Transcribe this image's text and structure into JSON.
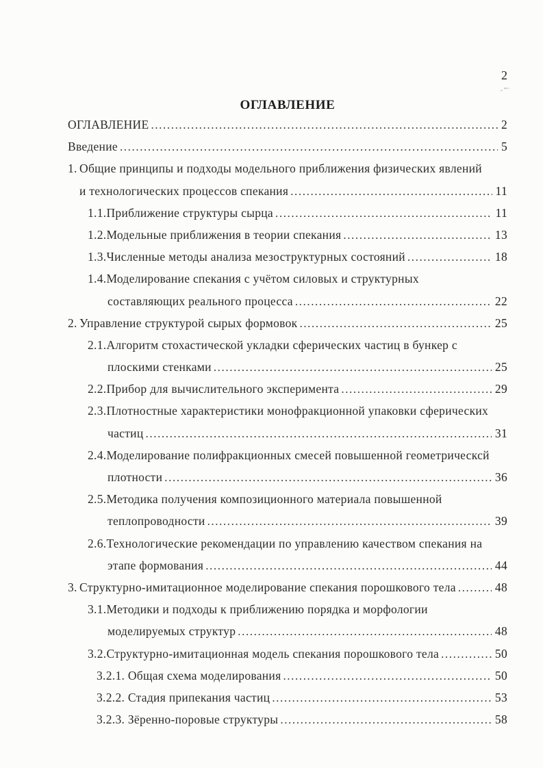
{
  "page": {
    "corner_page_number": "2",
    "title": "ОГЛАВЛЕНИЕ"
  },
  "colors": {
    "paper": "#fcfcfb",
    "text": "#2b2b2b"
  },
  "toc": {
    "entries": [
      {
        "lvl": "i0",
        "text": "ОГЛАВЛЕНИЕ",
        "page": "2"
      },
      {
        "lvl": "i0",
        "text": "Введение",
        "page": "5"
      },
      {
        "lvl": "ch",
        "num": "1.",
        "text": "Общие принципы и подходы модельного приближения физических явлений"
      },
      {
        "lvl": "ic",
        "text": "и технологических процессов спекания",
        "page": "11"
      },
      {
        "lvl": "i1",
        "text": "1.1.Приближение структуры сырца",
        "page": "11"
      },
      {
        "lvl": "i1",
        "text": "1.2.Модельные приближения в теории спекания",
        "page": "13"
      },
      {
        "lvl": "i1",
        "text": "1.3.Численные методы анализа мезоструктурных состояний",
        "page": "18"
      },
      {
        "lvl": "i1",
        "text": "1.4.Моделирование спекания с учётом силовых и структурных"
      },
      {
        "lvl": "i2",
        "text": "составляющих реального процесса",
        "page": "22"
      },
      {
        "lvl": "ch",
        "num": "2.",
        "text": "Управление структурой сырых формовок",
        "page": "25"
      },
      {
        "lvl": "i1",
        "text": "2.1.Алгоритм стохастической укладки сферических частиц в бункер с"
      },
      {
        "lvl": "i2",
        "text": "плоскими стенками",
        "page": "25"
      },
      {
        "lvl": "i1",
        "text": "2.2.Прибор для вычислительного эксперимента",
        "page": "29"
      },
      {
        "lvl": "i1",
        "text": "2.3.Плотностные характеристики монофракционной упаковки сферических"
      },
      {
        "lvl": "i2",
        "text": "частиц",
        "page": "31"
      },
      {
        "lvl": "i1",
        "text": "2.4.Моделирование полифракционных смесей повышенной геометрическсй"
      },
      {
        "lvl": "i2",
        "text": "плотности",
        "page": "36"
      },
      {
        "lvl": "i1",
        "text": "2.5.Методика получения композиционного материала повышенной"
      },
      {
        "lvl": "i2",
        "text": "теплопроводности",
        "page": "39"
      },
      {
        "lvl": "i1",
        "text": "2.6.Технологические рекомендации по управлению качеством спекания на"
      },
      {
        "lvl": "i2",
        "text": "этапе формования",
        "page": "44"
      },
      {
        "lvl": "ch",
        "num": "3.",
        "text": "Структурно-имитационное моделирование спекания порошкового тела",
        "page": "48"
      },
      {
        "lvl": "i1",
        "text": "3.1.Методики и подходы к приближению порядка и морфологии"
      },
      {
        "lvl": "i2",
        "text": "моделируемых структур",
        "page": "48"
      },
      {
        "lvl": "i1",
        "text": "3.2.Структурно-имитационная модель спекания порошкового тела",
        "page": "50"
      },
      {
        "lvl": "i3",
        "text": "3.2.1. Общая схема моделирования",
        "page": "50"
      },
      {
        "lvl": "i3",
        "text": "3.2.2. Стадия припекания частиц",
        "page": "53"
      },
      {
        "lvl": "i3",
        "text": "3.2.3. Зёренно-поровые структуры",
        "page": "58"
      }
    ]
  }
}
